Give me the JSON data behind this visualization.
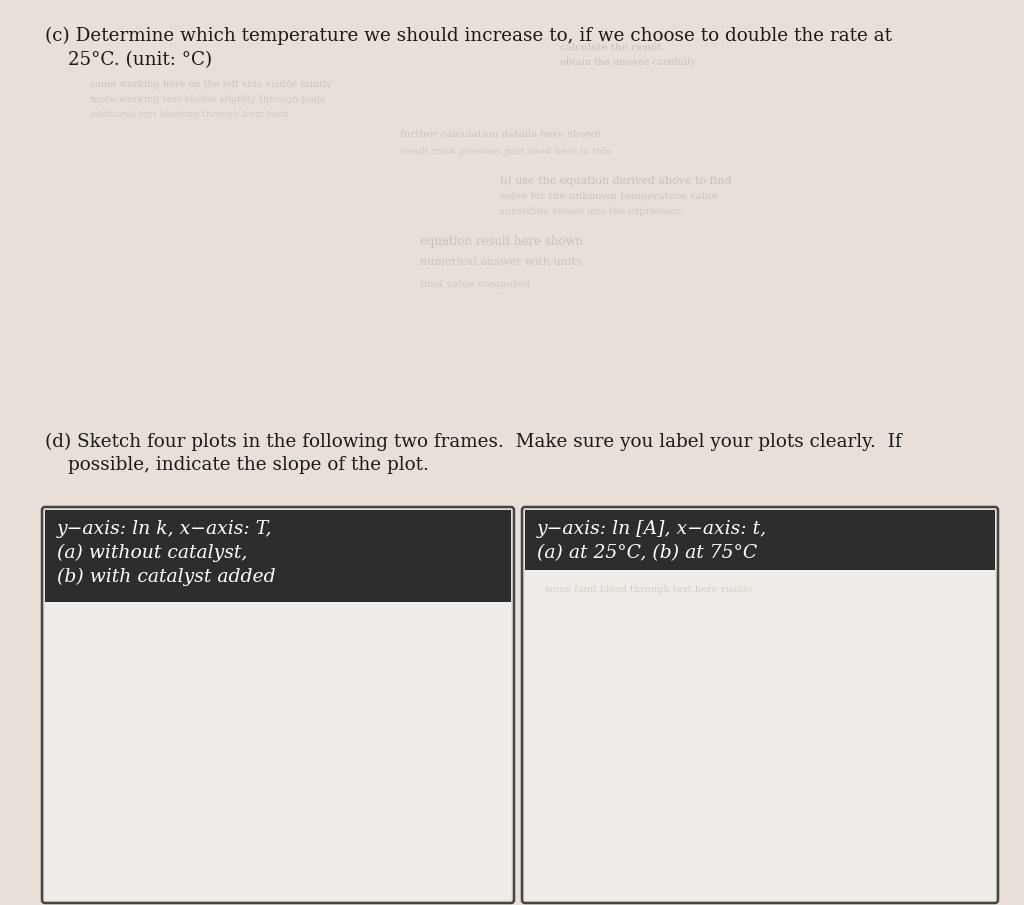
{
  "paper_color": "#e8e0d8",
  "header_bg": "#2d2d2d",
  "header_fg": "#ffffff",
  "box_bg": "#f0ece8",
  "box_interior": "#f5f2ef",
  "box_border": "#444444",
  "text_color": "#1a1a1a",
  "fade_color": "#9a9090",
  "c_line1": "(c) Determine which temperature we should increase to, if we choose to double the rate at",
  "c_line2": "25°C. (unit: °C)",
  "d_line1": "(d) Sketch four plots in the following two frames.  Make sure you label your plots clearly.  If",
  "d_line2": "      possible, indicate the slope of the plot.",
  "box1_h1": "y−axis: ln k, x−axis: T,",
  "box1_h2": "(a) without catalyst,",
  "box1_h3": "(b) with catalyst added",
  "box2_h1": "y−axis: ln [A], x−axis: t,",
  "box2_h2": "(a) at 25°C, (b) at 75°C"
}
